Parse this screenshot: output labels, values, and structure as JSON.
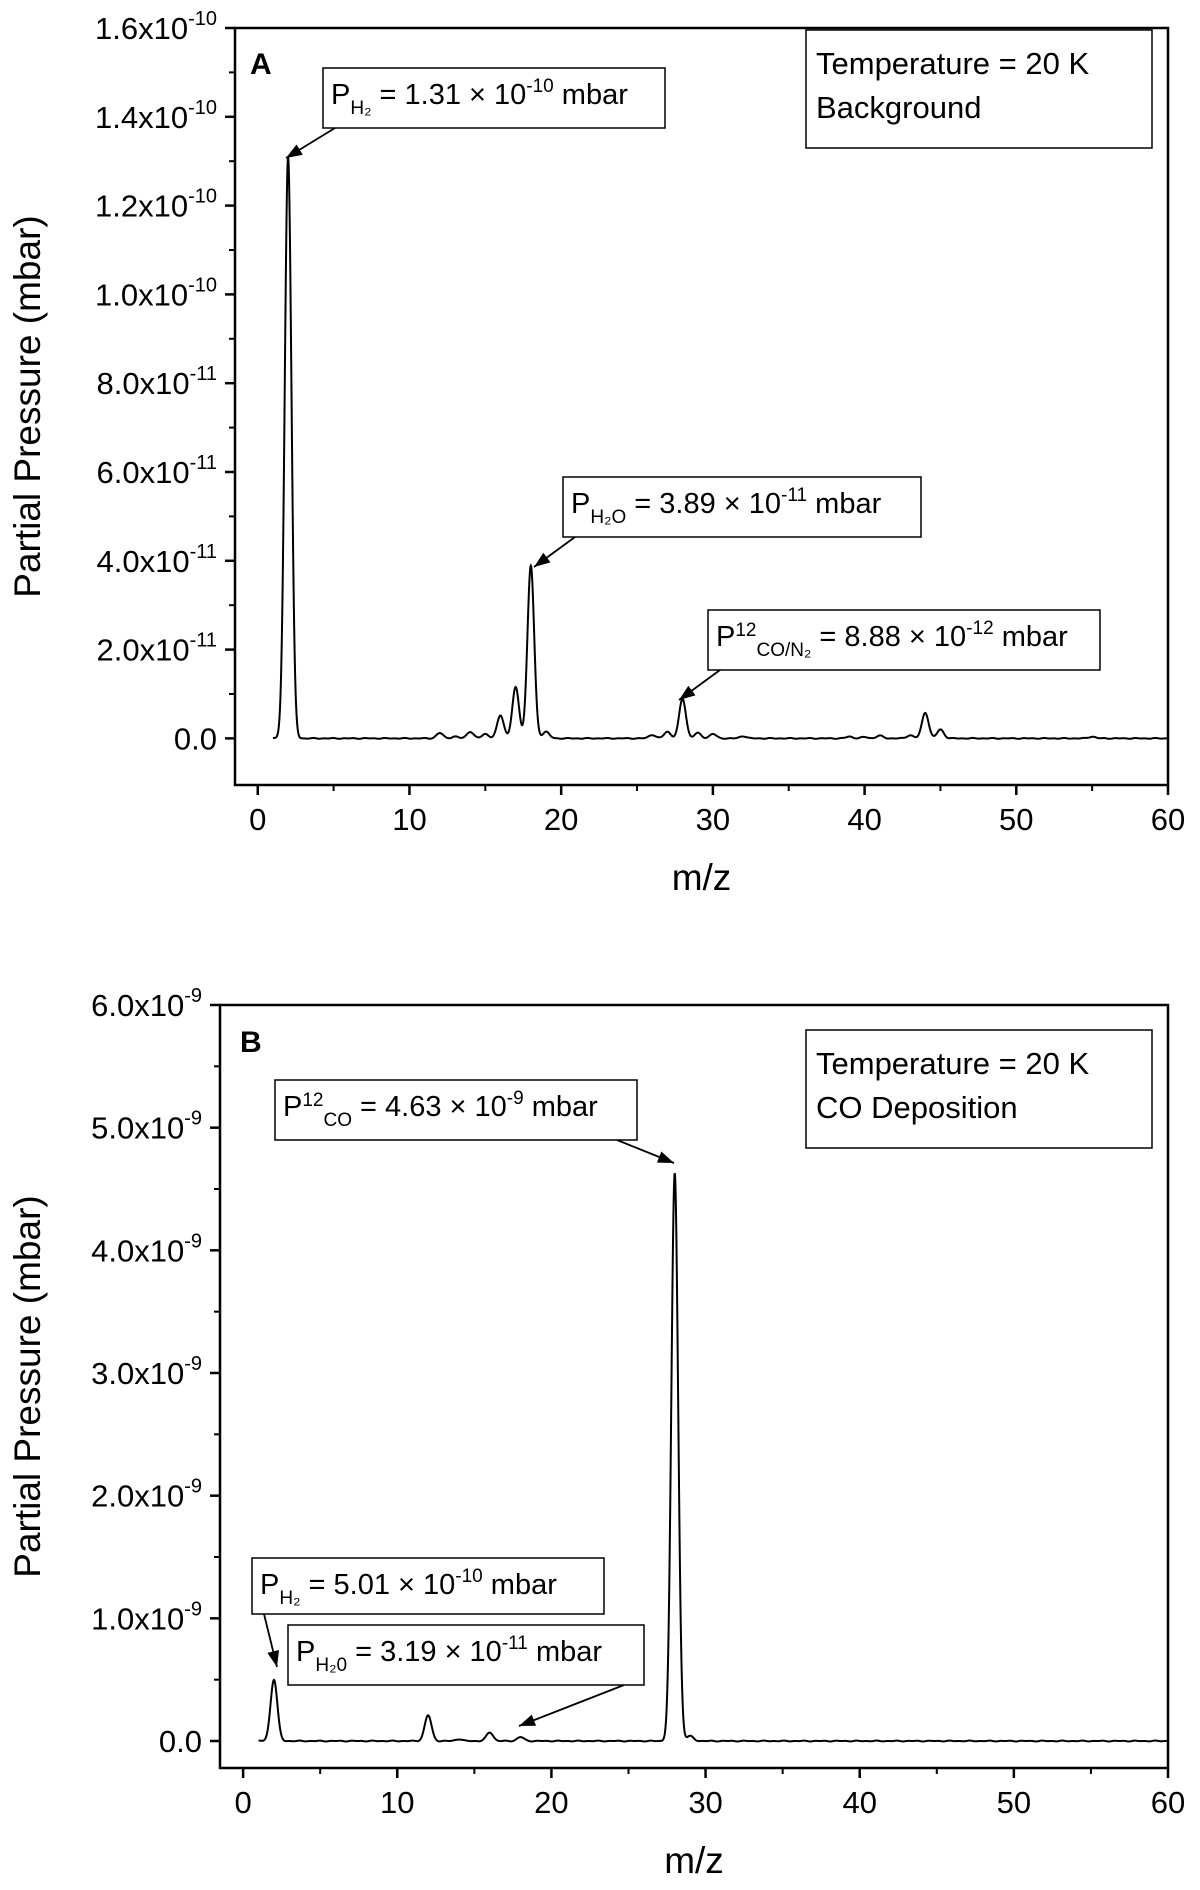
{
  "chart_data": [
    {
      "type": "line",
      "panel_label": "A",
      "xlabel": "m/z",
      "ylabel": "Partial Pressure (mbar)",
      "xlim": [
        -1.5,
        60
      ],
      "ylim": [
        -1.05e-11,
        1.6e-10
      ],
      "x_ticks": [
        0,
        10,
        20,
        30,
        40,
        50,
        60
      ],
      "y_ticks": [
        {
          "value": 0,
          "mant": "0.0",
          "exp": ""
        },
        {
          "value": 2e-11,
          "mant": "2.0x10",
          "exp": "-11"
        },
        {
          "value": 4e-11,
          "mant": "4.0x10",
          "exp": "-11"
        },
        {
          "value": 6e-11,
          "mant": "6.0x10",
          "exp": "-11"
        },
        {
          "value": 8e-11,
          "mant": "8.0x10",
          "exp": "-11"
        },
        {
          "value": 1e-10,
          "mant": "1.0x10",
          "exp": "-10"
        },
        {
          "value": 1.2e-10,
          "mant": "1.2x10",
          "exp": "-10"
        },
        {
          "value": 1.4e-10,
          "mant": "1.4x10",
          "exp": "-10"
        },
        {
          "value": 1.6e-10,
          "mant": "1.6x10",
          "exp": "-10"
        }
      ],
      "info_box": [
        "Temperature = 20 K",
        "Background"
      ],
      "series": [
        {
          "x_range": [
            1,
            60
          ],
          "peaks": [
            {
              "x": 2,
              "y": 1.31e-10
            },
            {
              "x": 12,
              "y": 1.2e-12
            },
            {
              "x": 13,
              "y": 4e-13
            },
            {
              "x": 14,
              "y": 1.5e-12
            },
            {
              "x": 15,
              "y": 1e-12
            },
            {
              "x": 16,
              "y": 5.2e-12
            },
            {
              "x": 17,
              "y": 1.15e-11
            },
            {
              "x": 18,
              "y": 3.89e-11
            },
            {
              "x": 19,
              "y": 1.5e-12
            },
            {
              "x": 26,
              "y": 8e-13
            },
            {
              "x": 27,
              "y": 1.5e-12
            },
            {
              "x": 28,
              "y": 8.88e-12
            },
            {
              "x": 29,
              "y": 1.2e-12
            },
            {
              "x": 30,
              "y": 1e-12
            },
            {
              "x": 32,
              "y": 5e-13
            },
            {
              "x": 39,
              "y": 4e-13
            },
            {
              "x": 40,
              "y": 3e-13
            },
            {
              "x": 41,
              "y": 6e-13
            },
            {
              "x": 43,
              "y": 7e-13
            },
            {
              "x": 44,
              "y": 5.8e-12
            },
            {
              "x": 45,
              "y": 2e-12
            },
            {
              "x": 55,
              "y": 4e-13
            }
          ]
        }
      ],
      "annotations": [
        {
          "base": "P",
          "sub": "H₂",
          "sup": "",
          "text": " = 1.31 × 10",
          "exp": "-10",
          "unit": " mbar",
          "x": 2,
          "y": 1.31e-10
        },
        {
          "base": "P",
          "sub": "H₂O",
          "sup": "",
          "text": " = 3.89 × 10",
          "exp": "-11",
          "unit": " mbar",
          "x": 18,
          "y": 3.89e-11
        },
        {
          "base": "P",
          "sup": "12",
          "sub": "CO/N₂",
          "text": " = 8.88 × 10",
          "exp": "-12",
          "unit": " mbar",
          "x": 28,
          "y": 8.88e-12
        }
      ]
    },
    {
      "type": "line",
      "panel_label": "B",
      "xlabel": "m/z",
      "ylabel": "Partial Pressure (mbar)",
      "xlim": [
        -1.5,
        60
      ],
      "ylim": [
        -2.2e-10,
        6e-09
      ],
      "x_ticks": [
        0,
        10,
        20,
        30,
        40,
        50,
        60
      ],
      "y_ticks": [
        {
          "value": 0,
          "mant": "0.0",
          "exp": ""
        },
        {
          "value": 1e-09,
          "mant": "1.0x10",
          "exp": "-9"
        },
        {
          "value": 2e-09,
          "mant": "2.0x10",
          "exp": "-9"
        },
        {
          "value": 3e-09,
          "mant": "3.0x10",
          "exp": "-9"
        },
        {
          "value": 4e-09,
          "mant": "4.0x10",
          "exp": "-9"
        },
        {
          "value": 5e-09,
          "mant": "5.0x10",
          "exp": "-9"
        },
        {
          "value": 6e-09,
          "mant": "6.0x10",
          "exp": "-9"
        }
      ],
      "info_box": [
        "Temperature = 20 K",
        "CO Deposition"
      ],
      "series": [
        {
          "x_range": [
            1,
            60
          ],
          "peaks": [
            {
              "x": 2,
              "y": 5.01e-10
            },
            {
              "x": 12,
              "y": 2.1e-10
            },
            {
              "x": 14,
              "y": 1.5e-11
            },
            {
              "x": 16,
              "y": 7e-11
            },
            {
              "x": 18,
              "y": 3.19e-11
            },
            {
              "x": 28,
              "y": 4.63e-09
            },
            {
              "x": 29,
              "y": 4e-11
            }
          ]
        }
      ],
      "annotations": [
        {
          "base": "P",
          "sup": "12",
          "sub": "CO",
          "text": " = 4.63 × 10",
          "exp": "-9",
          "unit": " mbar",
          "x": 28,
          "y": 4.63e-09
        },
        {
          "base": "P",
          "sub": "H₂",
          "sup": "",
          "text": " = 5.01 × 10",
          "exp": "-10",
          "unit": " mbar",
          "x": 2,
          "y": 5.01e-10
        },
        {
          "base": "P",
          "sub": "H₂0",
          "sup": "",
          "text": " = 3.19 × 10",
          "exp": "-11",
          "unit": " mbar",
          "x": 18,
          "y": 3.19e-11
        }
      ]
    }
  ]
}
